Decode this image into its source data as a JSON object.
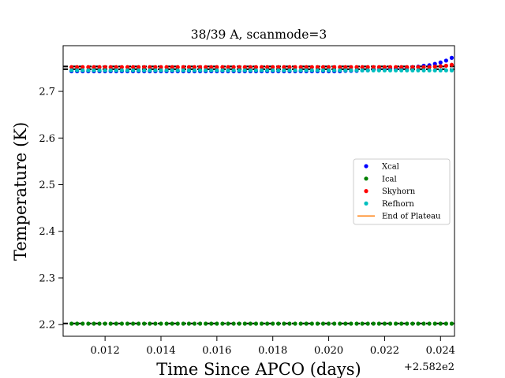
{
  "chart_data": {
    "type": "scatter",
    "title": "38/39 A, scanmode=3",
    "xlabel": "Time Since APCO (days)",
    "ylabel": "Temperature (K)",
    "x_offset_label": "+2.582e2",
    "xlim": [
      258.2105,
      258.2245
    ],
    "ylim": [
      2.175,
      2.798
    ],
    "xticks": [
      258.212,
      258.214,
      258.216,
      258.218,
      258.22,
      258.222,
      258.224
    ],
    "xtick_labels": [
      "0.012",
      "0.014",
      "0.016",
      "0.018",
      "0.020",
      "0.022",
      "0.024"
    ],
    "yticks": [
      2.2,
      2.3,
      2.4,
      2.5,
      2.6,
      2.7
    ],
    "ytick_labels": [
      "2.2",
      "2.3",
      "2.4",
      "2.5",
      "2.6",
      "2.7"
    ],
    "grid": false,
    "legend_position": "center-right",
    "series": [
      {
        "name": "Xcal",
        "color": "#0000ff",
        "x": [
          258.2108,
          258.211,
          258.2112,
          258.2114,
          258.2116,
          258.2118,
          258.212,
          258.2122,
          258.2124,
          258.2126,
          258.2128,
          258.213,
          258.2132,
          258.2134,
          258.2136,
          258.2138,
          258.214,
          258.2142,
          258.2144,
          258.2146,
          258.2148,
          258.215,
          258.2152,
          258.2154,
          258.2156,
          258.2158,
          258.216,
          258.2162,
          258.2164,
          258.2166,
          258.2168,
          258.217,
          258.2172,
          258.2174,
          258.2176,
          258.2178,
          258.218,
          258.2182,
          258.2184,
          258.2186,
          258.2188,
          258.219,
          258.2192,
          258.2194,
          258.2196,
          258.2198,
          258.22,
          258.2202,
          258.2204,
          258.2206,
          258.2208,
          258.221,
          258.2212,
          258.2214,
          258.2216,
          258.2218,
          258.222,
          258.2222,
          258.2224,
          258.2226,
          258.2228,
          258.223,
          258.2232,
          258.2234,
          258.2236,
          258.2238,
          258.224,
          258.2242,
          258.2244
        ],
        "y": [
          2.743,
          2.743,
          2.743,
          2.743,
          2.743,
          2.743,
          2.743,
          2.743,
          2.743,
          2.743,
          2.743,
          2.743,
          2.743,
          2.743,
          2.743,
          2.743,
          2.743,
          2.743,
          2.743,
          2.743,
          2.743,
          2.743,
          2.743,
          2.743,
          2.743,
          2.743,
          2.743,
          2.743,
          2.743,
          2.743,
          2.743,
          2.743,
          2.743,
          2.743,
          2.743,
          2.743,
          2.743,
          2.743,
          2.743,
          2.743,
          2.743,
          2.743,
          2.743,
          2.743,
          2.743,
          2.743,
          2.743,
          2.743,
          2.743,
          2.744,
          2.744,
          2.744,
          2.745,
          2.745,
          2.746,
          2.746,
          2.747,
          2.748,
          2.749,
          2.75,
          2.751,
          2.752,
          2.753,
          2.755,
          2.756,
          2.759,
          2.762,
          2.766,
          2.772
        ]
      },
      {
        "name": "Ical",
        "color": "#008000",
        "x": [
          258.2108,
          258.211,
          258.2112,
          258.2114,
          258.2116,
          258.2118,
          258.212,
          258.2122,
          258.2124,
          258.2126,
          258.2128,
          258.213,
          258.2132,
          258.2134,
          258.2136,
          258.2138,
          258.214,
          258.2142,
          258.2144,
          258.2146,
          258.2148,
          258.215,
          258.2152,
          258.2154,
          258.2156,
          258.2158,
          258.216,
          258.2162,
          258.2164,
          258.2166,
          258.2168,
          258.217,
          258.2172,
          258.2174,
          258.2176,
          258.2178,
          258.218,
          258.2182,
          258.2184,
          258.2186,
          258.2188,
          258.219,
          258.2192,
          258.2194,
          258.2196,
          258.2198,
          258.22,
          258.2202,
          258.2204,
          258.2206,
          258.2208,
          258.221,
          258.2212,
          258.2214,
          258.2216,
          258.2218,
          258.222,
          258.2222,
          258.2224,
          258.2226,
          258.2228,
          258.223,
          258.2232,
          258.2234,
          258.2236,
          258.2238,
          258.224,
          258.2242,
          258.2244
        ],
        "y": [
          2.202,
          2.202,
          2.202,
          2.202,
          2.202,
          2.202,
          2.202,
          2.202,
          2.202,
          2.202,
          2.202,
          2.202,
          2.202,
          2.202,
          2.202,
          2.202,
          2.202,
          2.202,
          2.202,
          2.202,
          2.202,
          2.202,
          2.202,
          2.202,
          2.202,
          2.202,
          2.202,
          2.202,
          2.202,
          2.202,
          2.202,
          2.202,
          2.202,
          2.202,
          2.202,
          2.202,
          2.202,
          2.202,
          2.202,
          2.202,
          2.202,
          2.202,
          2.202,
          2.202,
          2.202,
          2.202,
          2.202,
          2.202,
          2.202,
          2.202,
          2.202,
          2.202,
          2.202,
          2.202,
          2.202,
          2.202,
          2.202,
          2.202,
          2.202,
          2.202,
          2.202,
          2.202,
          2.202,
          2.202,
          2.202,
          2.202,
          2.202,
          2.202,
          2.202
        ]
      },
      {
        "name": "Skyhorn",
        "color": "#ff0000",
        "x": [
          258.2108,
          258.211,
          258.2112,
          258.2114,
          258.2116,
          258.2118,
          258.212,
          258.2122,
          258.2124,
          258.2126,
          258.2128,
          258.213,
          258.2132,
          258.2134,
          258.2136,
          258.2138,
          258.214,
          258.2142,
          258.2144,
          258.2146,
          258.2148,
          258.215,
          258.2152,
          258.2154,
          258.2156,
          258.2158,
          258.216,
          258.2162,
          258.2164,
          258.2166,
          258.2168,
          258.217,
          258.2172,
          258.2174,
          258.2176,
          258.2178,
          258.218,
          258.2182,
          258.2184,
          258.2186,
          258.2188,
          258.219,
          258.2192,
          258.2194,
          258.2196,
          258.2198,
          258.22,
          258.2202,
          258.2204,
          258.2206,
          258.2208,
          258.221,
          258.2212,
          258.2214,
          258.2216,
          258.2218,
          258.222,
          258.2222,
          258.2224,
          258.2226,
          258.2228,
          258.223,
          258.2232,
          258.2234,
          258.2236,
          258.2238,
          258.224,
          258.2242,
          258.2244
        ],
        "y": [
          2.752,
          2.752,
          2.752,
          2.752,
          2.752,
          2.752,
          2.752,
          2.752,
          2.752,
          2.752,
          2.752,
          2.752,
          2.752,
          2.752,
          2.752,
          2.752,
          2.752,
          2.752,
          2.752,
          2.752,
          2.752,
          2.752,
          2.752,
          2.752,
          2.752,
          2.752,
          2.752,
          2.752,
          2.752,
          2.752,
          2.752,
          2.752,
          2.752,
          2.752,
          2.752,
          2.752,
          2.752,
          2.752,
          2.752,
          2.752,
          2.752,
          2.752,
          2.752,
          2.752,
          2.752,
          2.752,
          2.752,
          2.752,
          2.752,
          2.752,
          2.752,
          2.752,
          2.752,
          2.752,
          2.752,
          2.752,
          2.752,
          2.752,
          2.752,
          2.752,
          2.752,
          2.752,
          2.752,
          2.752,
          2.752,
          2.753,
          2.754,
          2.755,
          2.757
        ]
      },
      {
        "name": "Refhorn",
        "color": "#00bfbf",
        "x": [
          258.2108,
          258.211,
          258.2112,
          258.2114,
          258.2116,
          258.2118,
          258.212,
          258.2122,
          258.2124,
          258.2126,
          258.2128,
          258.213,
          258.2132,
          258.2134,
          258.2136,
          258.2138,
          258.214,
          258.2142,
          258.2144,
          258.2146,
          258.2148,
          258.215,
          258.2152,
          258.2154,
          258.2156,
          258.2158,
          258.216,
          258.2162,
          258.2164,
          258.2166,
          258.2168,
          258.217,
          258.2172,
          258.2174,
          258.2176,
          258.2178,
          258.218,
          258.2182,
          258.2184,
          258.2186,
          258.2188,
          258.219,
          258.2192,
          258.2194,
          258.2196,
          258.2198,
          258.22,
          258.2202,
          258.2204,
          258.2206,
          258.2208,
          258.221,
          258.2212,
          258.2214,
          258.2216,
          258.2218,
          258.222,
          258.2222,
          258.2224,
          258.2226,
          258.2228,
          258.223,
          258.2232,
          258.2234,
          258.2236,
          258.2238,
          258.224,
          258.2242,
          258.2244
        ],
        "y": [
          2.745,
          2.745,
          2.745,
          2.745,
          2.745,
          2.745,
          2.745,
          2.745,
          2.745,
          2.745,
          2.745,
          2.745,
          2.745,
          2.745,
          2.745,
          2.745,
          2.745,
          2.745,
          2.745,
          2.745,
          2.745,
          2.745,
          2.745,
          2.745,
          2.745,
          2.745,
          2.745,
          2.745,
          2.745,
          2.745,
          2.745,
          2.745,
          2.745,
          2.745,
          2.745,
          2.745,
          2.745,
          2.745,
          2.745,
          2.745,
          2.745,
          2.745,
          2.745,
          2.745,
          2.745,
          2.745,
          2.745,
          2.745,
          2.745,
          2.745,
          2.745,
          2.745,
          2.745,
          2.745,
          2.745,
          2.745,
          2.745,
          2.745,
          2.745,
          2.745,
          2.745,
          2.745,
          2.745,
          2.745,
          2.745,
          2.745,
          2.745,
          2.745,
          2.745
        ]
      },
      {
        "name": "End of Plateau",
        "color": "#ff7f0e",
        "kind": "line",
        "x": [],
        "y": []
      }
    ],
    "reference_lines": [
      {
        "y": 2.7535,
        "color": "#000000",
        "style": "dashed"
      },
      {
        "y": 2.7475,
        "color": "#000000",
        "style": "dashed"
      },
      {
        "y": 2.2025,
        "color": "#000000",
        "style": "dashed"
      }
    ]
  }
}
